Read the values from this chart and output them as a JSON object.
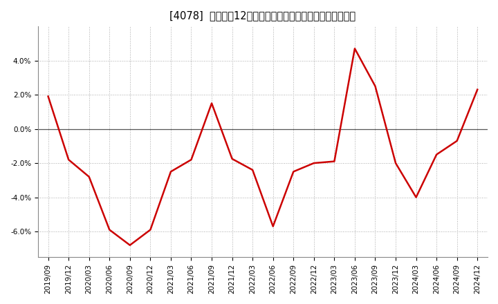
{
  "title": "[4078]  売上高の12か月移動合計の対前年同期増減率の推移",
  "x_labels": [
    "2019/09",
    "2019/12",
    "2020/03",
    "2020/06",
    "2020/09",
    "2020/12",
    "2021/03",
    "2021/06",
    "2021/09",
    "2021/12",
    "2022/03",
    "2022/06",
    "2022/09",
    "2022/12",
    "2023/03",
    "2023/06",
    "2023/09",
    "2023/12",
    "2024/03",
    "2024/06",
    "2024/09",
    "2024/12"
  ],
  "y_values": [
    1.9,
    -1.8,
    -2.8,
    -5.9,
    -6.8,
    -5.9,
    -2.5,
    -1.8,
    1.5,
    -1.75,
    -2.4,
    -5.7,
    -2.5,
    -2.0,
    -1.9,
    4.7,
    2.5,
    -2.0,
    -4.0,
    -1.5,
    -0.7,
    2.3
  ],
  "line_color": "#cc0000",
  "bg_color": "#ffffff",
  "plot_bg_color": "#ffffff",
  "grid_color": "#aaaaaa",
  "ylim": [
    -7.5,
    6.0
  ],
  "yticks": [
    -6.0,
    -4.0,
    -2.0,
    0.0,
    2.0,
    4.0
  ],
  "title_fontsize": 10.5,
  "tick_fontsize": 7.5,
  "zero_line_color": "#555555"
}
